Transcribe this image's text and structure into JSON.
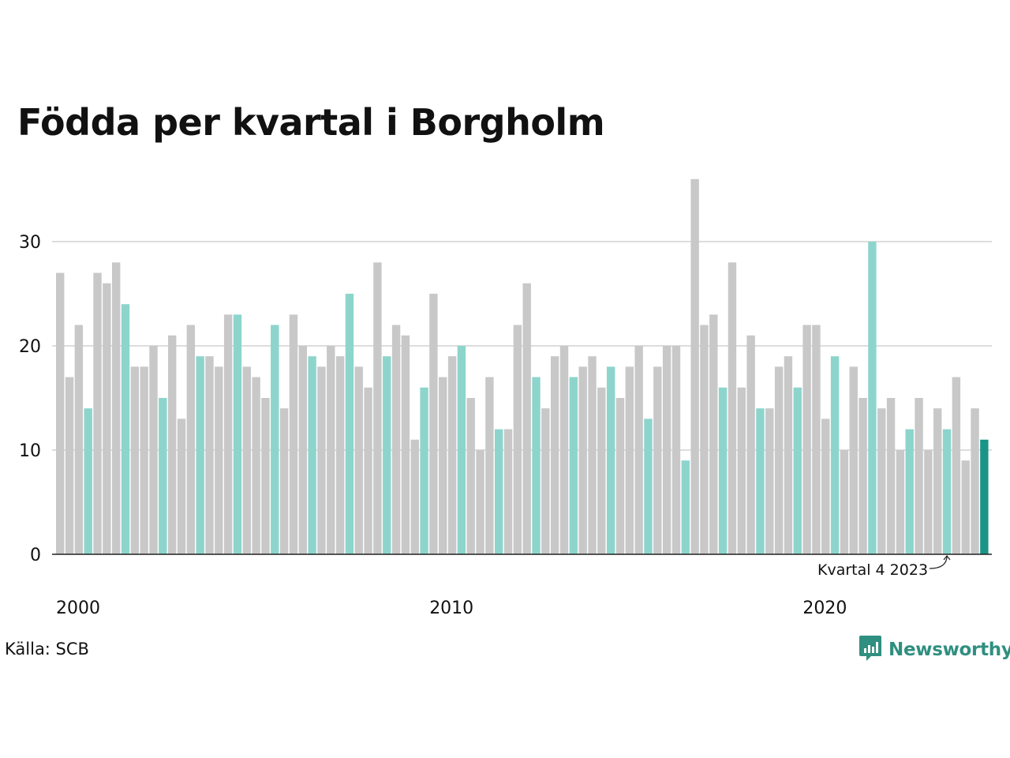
{
  "chart_data": {
    "type": "bar",
    "title": "Födda per kvartal i Borgholm",
    "source": "Källa: SCB",
    "brand": "Newsworthy",
    "ylim": [
      0,
      36
    ],
    "yticks": [
      0,
      10,
      20,
      30
    ],
    "x_tick_labels": [
      "2000",
      "2010",
      "2020"
    ],
    "grid": true,
    "colors": {
      "other_quarters": "#c8c8c8",
      "same_quarter_as_latest": "#8dd5cc",
      "latest": "#1a9486"
    },
    "annotation": {
      "text": "Kvartal 4 2023",
      "target": "2023 Q4"
    },
    "categories": [
      "2000 Q1",
      "2000 Q2",
      "2000 Q3",
      "2000 Q4",
      "2001 Q1",
      "2001 Q2",
      "2001 Q3",
      "2001 Q4",
      "2002 Q1",
      "2002 Q2",
      "2002 Q3",
      "2002 Q4",
      "2003 Q1",
      "2003 Q2",
      "2003 Q3",
      "2003 Q4",
      "2004 Q1",
      "2004 Q2",
      "2004 Q3",
      "2004 Q4",
      "2005 Q1",
      "2005 Q2",
      "2005 Q3",
      "2005 Q4",
      "2006 Q1",
      "2006 Q2",
      "2006 Q3",
      "2006 Q4",
      "2007 Q1",
      "2007 Q2",
      "2007 Q3",
      "2007 Q4",
      "2008 Q1",
      "2008 Q2",
      "2008 Q3",
      "2008 Q4",
      "2009 Q1",
      "2009 Q2",
      "2009 Q3",
      "2009 Q4",
      "2010 Q1",
      "2010 Q2",
      "2010 Q3",
      "2010 Q4",
      "2011 Q1",
      "2011 Q2",
      "2011 Q3",
      "2011 Q4",
      "2012 Q1",
      "2012 Q2",
      "2012 Q3",
      "2012 Q4",
      "2013 Q1",
      "2013 Q2",
      "2013 Q3",
      "2013 Q4",
      "2014 Q1",
      "2014 Q2",
      "2014 Q3",
      "2014 Q4",
      "2015 Q1",
      "2015 Q2",
      "2015 Q3",
      "2015 Q4",
      "2016 Q1",
      "2016 Q2",
      "2016 Q3",
      "2016 Q4",
      "2017 Q1",
      "2017 Q2",
      "2017 Q3",
      "2017 Q4",
      "2018 Q1",
      "2018 Q2",
      "2018 Q3",
      "2018 Q4",
      "2019 Q1",
      "2019 Q2",
      "2019 Q3",
      "2019 Q4",
      "2020 Q1",
      "2020 Q2",
      "2020 Q3",
      "2020 Q4",
      "2021 Q1",
      "2021 Q2",
      "2021 Q3",
      "2021 Q4",
      "2022 Q1",
      "2022 Q2",
      "2022 Q3",
      "2022 Q4",
      "2023 Q1",
      "2023 Q2",
      "2023 Q3",
      "2023 Q4",
      "2024 Q1",
      "2024 Q2",
      "2024 Q3",
      "2024 Q4"
    ],
    "values": [
      27,
      17,
      22,
      14,
      27,
      26,
      28,
      24,
      18,
      18,
      20,
      15,
      21,
      13,
      22,
      19,
      19,
      18,
      23,
      23,
      18,
      17,
      15,
      22,
      14,
      23,
      20,
      19,
      18,
      20,
      19,
      25,
      18,
      16,
      28,
      19,
      22,
      21,
      11,
      16,
      25,
      17,
      19,
      20,
      15,
      10,
      17,
      12,
      12,
      22,
      26,
      17,
      14,
      19,
      20,
      17,
      18,
      19,
      16,
      18,
      15,
      18,
      20,
      13,
      18,
      20,
      20,
      9,
      36,
      22,
      23,
      16,
      28,
      16,
      21,
      14,
      14,
      18,
      19,
      16,
      22,
      22,
      13,
      19,
      10,
      18,
      15,
      30,
      14,
      15,
      10,
      12,
      15,
      10,
      14,
      12,
      17,
      9,
      14,
      11
    ]
  }
}
